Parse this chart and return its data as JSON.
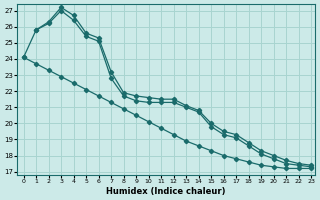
{
  "xlabel": "Humidex (Indice chaleur)",
  "xlim_min": -0.5,
  "xlim_max": 23.3,
  "ylim_min": 16.8,
  "ylim_max": 27.4,
  "yticks": [
    17,
    18,
    19,
    20,
    21,
    22,
    23,
    24,
    25,
    26,
    27
  ],
  "xticks": [
    0,
    1,
    2,
    3,
    4,
    5,
    6,
    7,
    8,
    9,
    10,
    11,
    12,
    13,
    14,
    15,
    16,
    17,
    18,
    19,
    20,
    21,
    22,
    23
  ],
  "bg_color": "#cceae8",
  "grid_color": "#a8d4d0",
  "line_color": "#1a6b6b",
  "series1_x": [
    0,
    1,
    2,
    3,
    4,
    5,
    6,
    7,
    8,
    9,
    10,
    11,
    12,
    13,
    14,
    15,
    16,
    17,
    18,
    19,
    20,
    21,
    22,
    23
  ],
  "series1_y": [
    24.1,
    25.8,
    26.3,
    27.2,
    26.7,
    25.6,
    25.3,
    23.2,
    21.9,
    21.7,
    21.6,
    21.5,
    21.5,
    21.1,
    20.8,
    20.0,
    19.5,
    19.3,
    18.8,
    18.3,
    18.0,
    17.7,
    17.5,
    17.4
  ],
  "series2_x": [
    1,
    2,
    3,
    4,
    5,
    6,
    7,
    8,
    9,
    10,
    11,
    12,
    13,
    14,
    15,
    16,
    17,
    18,
    19,
    20,
    21,
    22,
    23
  ],
  "series2_y": [
    25.8,
    26.2,
    27.0,
    26.4,
    25.4,
    25.1,
    22.8,
    21.7,
    21.4,
    21.3,
    21.3,
    21.3,
    21.0,
    20.7,
    19.8,
    19.3,
    19.1,
    18.6,
    18.1,
    17.8,
    17.5,
    17.4,
    17.3
  ],
  "series3_x": [
    0,
    1,
    2,
    3,
    4,
    5,
    6,
    7,
    8,
    9,
    10,
    11,
    12,
    13,
    14,
    15,
    16,
    17,
    18,
    19,
    20,
    21,
    22,
    23
  ],
  "series3_y": [
    24.1,
    23.7,
    23.3,
    22.9,
    22.5,
    22.1,
    21.7,
    21.3,
    20.9,
    20.5,
    20.1,
    19.7,
    19.3,
    18.9,
    18.6,
    18.3,
    18.0,
    17.8,
    17.6,
    17.4,
    17.3,
    17.2,
    17.2,
    17.2
  ]
}
